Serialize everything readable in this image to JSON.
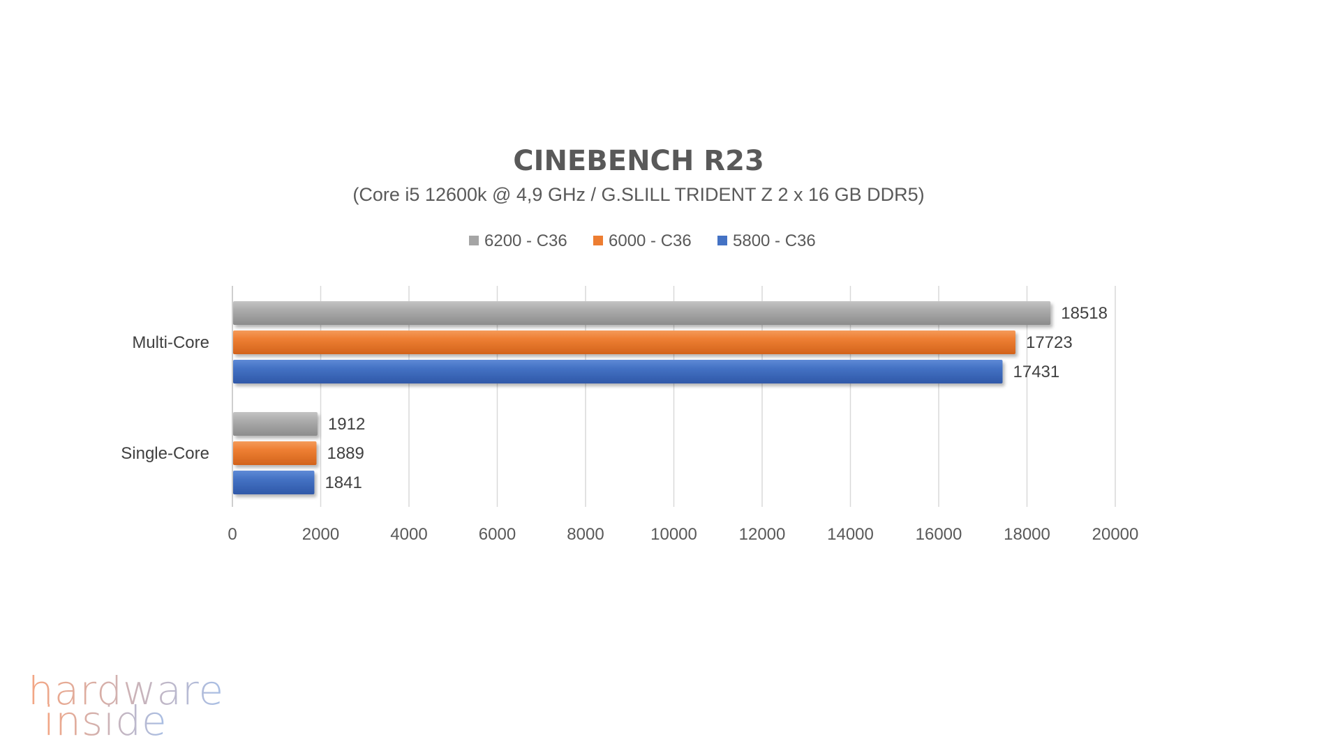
{
  "chart_data": {
    "type": "bar",
    "orientation": "horizontal",
    "title": "CINEBENCH R23",
    "subtitle": "(Core i5 12600k @ 4,9 GHz / G.SLILL TRIDENT Z 2 x 16 GB DDR5)",
    "categories": [
      "Multi-Core",
      "Single-Core"
    ],
    "series": [
      {
        "name": "6200 - C36",
        "color": "#a5a5a5",
        "values": [
          18518,
          1912
        ]
      },
      {
        "name": "6000 - C36",
        "color": "#ed7d31",
        "values": [
          17723,
          1889
        ]
      },
      {
        "name": "5800 - C36",
        "color": "#4472c4",
        "values": [
          17431,
          1841
        ]
      }
    ],
    "xlim": [
      0,
      20000
    ],
    "xticks": [
      0,
      2000,
      4000,
      6000,
      8000,
      10000,
      12000,
      14000,
      16000,
      18000,
      20000
    ],
    "grid": true,
    "legend_position": "top",
    "data_labels": true
  },
  "logo": {
    "line1": "hardware",
    "line2": "inside",
    "color_left": "#f4a582",
    "color_right": "#a8bfe6"
  }
}
